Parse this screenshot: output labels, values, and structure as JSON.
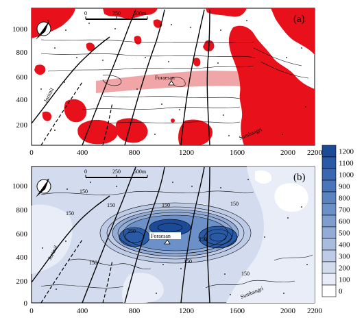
{
  "panel_a": {
    "label": "(a)",
    "scalebar": {
      "ticks": [
        "0",
        "250",
        "500m"
      ]
    },
    "place_labels": {
      "center": "Foraesan",
      "left": "Jorimil",
      "right": "Sumbangri"
    },
    "x_ticks": [
      "0",
      "400",
      "800",
      "1200",
      "1600",
      "2000",
      "2200"
    ],
    "y_ticks": [
      "200",
      "400",
      "600",
      "800",
      "1000"
    ],
    "colors": {
      "anomaly": "#e8111b",
      "band": "#f0a6a6"
    }
  },
  "panel_b": {
    "label": "(b)",
    "scalebar": {
      "ticks": [
        "0",
        "250",
        "500m"
      ]
    },
    "place_labels": {
      "center": "Foraesan",
      "left": "Jorimil",
      "right": "Sumbangri"
    },
    "contour_labels": [
      "150",
      "150",
      "150",
      "150",
      "150",
      "150",
      "150",
      "150",
      "250",
      "250"
    ],
    "x_ticks": [
      "0",
      "400",
      "800",
      "1200",
      "1600",
      "2000",
      "2200"
    ],
    "y_ticks": [
      "0",
      "200",
      "400",
      "600",
      "800",
      "1000"
    ]
  },
  "colorbar": {
    "levels": [
      "1200",
      "1100",
      "1000",
      "900",
      "800",
      "700",
      "600",
      "500",
      "400",
      "300",
      "200",
      "100",
      "0"
    ],
    "colors": [
      "#1d4a96",
      "#2a5aa6",
      "#3a68b0",
      "#4a75b8",
      "#5b83c0",
      "#6c90c8",
      "#7f9ecf",
      "#93acd6",
      "#a8bcde",
      "#bdcbe6",
      "#d3dcee",
      "#e8edf7",
      "#ffffff"
    ]
  }
}
